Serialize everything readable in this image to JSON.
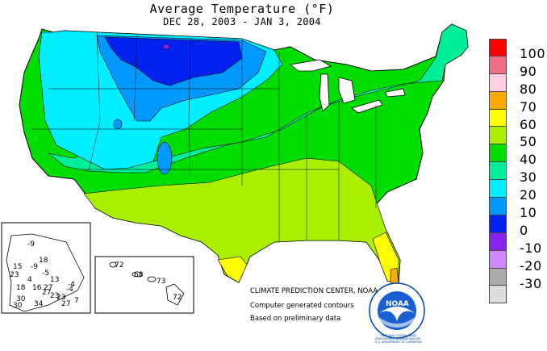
{
  "title": "Average Temperature (°F)",
  "subtitle": "DEC 28, 2003 - JAN  3, 2004",
  "legend": [
    {
      "label": "100",
      "color": "#ff0000"
    },
    {
      "label": "90",
      "color": "#ee7088"
    },
    {
      "label": "80",
      "color": "#ffcce0"
    },
    {
      "label": "70",
      "color": "#ffaa00"
    },
    {
      "label": "60",
      "color": "#ffff00"
    },
    {
      "label": "50",
      "color": "#aaee00"
    },
    {
      "label": "40",
      "color": "#00dd00"
    },
    {
      "label": "30",
      "color": "#00ee99"
    },
    {
      "label": "20",
      "color": "#00eeff"
    },
    {
      "label": "10",
      "color": "#0099ff"
    },
    {
      "label": "0",
      "color": "#0022ee"
    },
    {
      "label": "-10",
      "color": "#8822ee"
    },
    {
      "label": "-20",
      "color": "#cc88ff"
    },
    {
      "label": "-30",
      "color": "#aaaaaa"
    },
    {
      "label": "",
      "color": "#dddddd"
    }
  ],
  "credits": {
    "line1": "CLIMATE PREDICTION CENTER, NOAA",
    "line2": "Computer generated contours",
    "line3": "Based on preliminary data"
  },
  "noaa_logo": {
    "text": "NOAA",
    "ring_text": "NATIONAL OCEANIC AND ATMOSPHERIC ADMINISTRATION · U.S. DEPARTMENT OF COMMERCE"
  },
  "alaska_labels": [
    "-9",
    "18",
    "15",
    "-9",
    "-5",
    "23",
    "-4",
    "13",
    "18",
    "16",
    "27",
    "-4",
    "30",
    "27",
    "4",
    "23",
    "34",
    "23",
    "27",
    "7",
    "30"
  ],
  "hawaii_labels": [
    "72",
    "68",
    "73",
    "72"
  ]
}
